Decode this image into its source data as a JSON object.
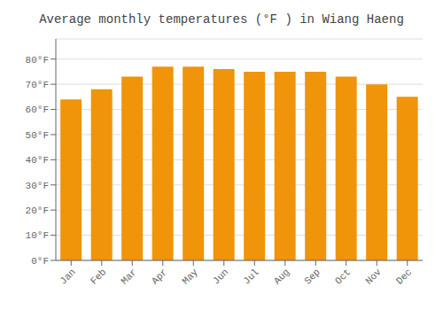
{
  "chart_data": {
    "type": "bar",
    "title": "Average monthly temperatures (°F ) in Wiang Haeng",
    "categories": [
      "Jan",
      "Feb",
      "Mar",
      "Apr",
      "May",
      "Jun",
      "Jul",
      "Aug",
      "Sep",
      "Oct",
      "Nov",
      "Dec"
    ],
    "values": [
      64,
      68,
      73,
      77,
      77,
      76,
      75,
      75,
      75,
      73,
      70,
      65
    ],
    "color": "#F0940A",
    "ylim": [
      0,
      88
    ],
    "yticks": [
      {
        "value": 0,
        "label": "0°F"
      },
      {
        "value": 10,
        "label": "10°F"
      },
      {
        "value": 20,
        "label": "20°F"
      },
      {
        "value": 30,
        "label": "30°F"
      },
      {
        "value": 40,
        "label": "40°F"
      },
      {
        "value": 50,
        "label": "50°F"
      },
      {
        "value": 60,
        "label": "60°F"
      },
      {
        "value": 70,
        "label": "70°F"
      },
      {
        "value": 80,
        "label": "80°F"
      }
    ],
    "grid": true
  }
}
